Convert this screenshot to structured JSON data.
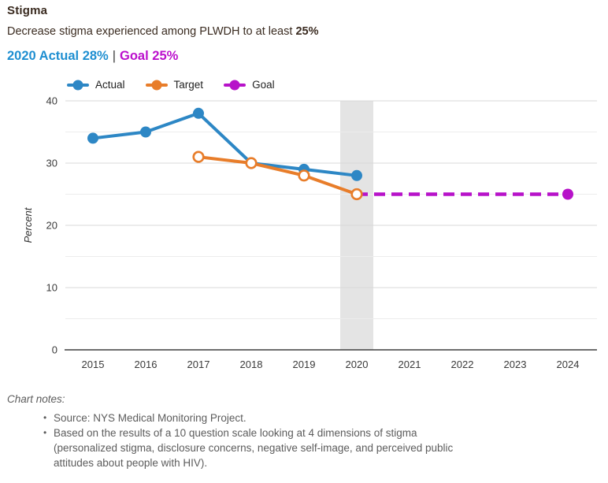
{
  "header": {
    "title": "Stigma",
    "subtitle_prefix": "Decrease stigma experienced among PLWDH to at least ",
    "subtitle_bold": "25%"
  },
  "status": {
    "actual_text": "2020 Actual 28%",
    "separator": "|",
    "goal_text": "Goal 25%",
    "actual_color": "#1f8fd1",
    "goal_color": "#bb10cd"
  },
  "chart_data": {
    "type": "line",
    "title": "",
    "xlabel": "",
    "ylabel": "Percent",
    "ylim": [
      0,
      40
    ],
    "grid_step": 5,
    "x_ticks": [
      2015,
      2016,
      2017,
      2018,
      2019,
      2020,
      2021,
      2022,
      2023,
      2024
    ],
    "highlight_band_x": 2020,
    "legend_position": "top-left",
    "colors": {
      "band": "#e4e4e4",
      "grid_major": "#d9d9d9",
      "grid_minor": "#ececec",
      "axis": "#3f3f3f"
    },
    "series": [
      {
        "name": "Actual",
        "color": "#2d87c5",
        "dash": false,
        "marker": "filled",
        "x": [
          2015,
          2016,
          2017,
          2018,
          2019,
          2020
        ],
        "y": [
          34,
          35,
          38,
          30,
          29,
          28
        ]
      },
      {
        "name": "Target",
        "color": "#e87d2a",
        "dash": false,
        "marker": "hollow",
        "x": [
          2017,
          2018,
          2019,
          2020
        ],
        "y": [
          31,
          30,
          28,
          25
        ]
      },
      {
        "name": "Goal",
        "color": "#b712c9",
        "dash": true,
        "marker": "last-filled",
        "x": [
          2020,
          2024
        ],
        "y": [
          25,
          25
        ]
      }
    ]
  },
  "notes": {
    "heading": "Chart notes:",
    "items": [
      "Source: NYS Medical Monitoring Project.",
      "Based on the results of a 10 question scale looking at 4 dimensions of stigma (personalized stigma, disclosure concerns, negative self-image, and perceived public attitudes about people with HIV)."
    ]
  }
}
